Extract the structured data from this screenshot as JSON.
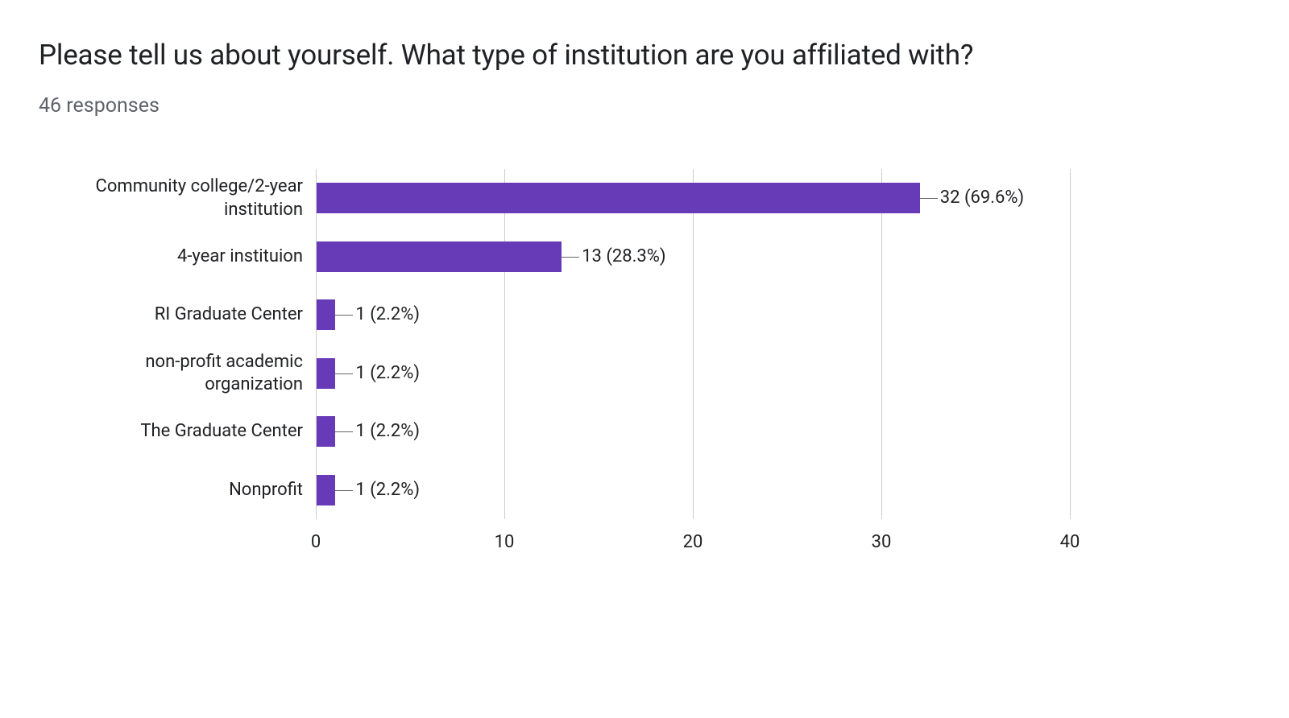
{
  "title": "Please tell us about yourself. What type of institution are you affiliated with?",
  "subtitle": "46 responses",
  "chart": {
    "type": "bar",
    "orientation": "horizontal",
    "bar_color": "#673ab7",
    "grid_color": "#cccccc",
    "text_color": "#202124",
    "background_color": "#ffffff",
    "title_fontsize": 36,
    "subtitle_fontsize": 25,
    "label_fontsize": 22,
    "xlim": [
      0,
      40
    ],
    "xtick_step": 10,
    "xticks": [
      "0",
      "10",
      "20",
      "30",
      "40"
    ],
    "categories": [
      "Community college/2-year institution",
      "4-year instituion",
      "RI Graduate Center",
      "non-profit academic organization",
      "The Graduate Center",
      "Nonprofit"
    ],
    "category_display": [
      [
        "Community college/2-year",
        "institution"
      ],
      [
        "4-year instituion"
      ],
      [
        "RI Graduate Center"
      ],
      [
        "non-profit academic",
        "organization"
      ],
      [
        "The Graduate Center"
      ],
      [
        "Nonprofit"
      ]
    ],
    "values": [
      32,
      13,
      1,
      1,
      1,
      1
    ],
    "percentages": [
      "69.6%",
      "28.3%",
      "2.2%",
      "2.2%",
      "2.2%",
      "2.2%"
    ],
    "data_labels": [
      "32 (69.6%)",
      "13 (28.3%)",
      "1 (2.2%)",
      "1 (2.2%)",
      "1 (2.2%)",
      "1 (2.2%)"
    ]
  }
}
